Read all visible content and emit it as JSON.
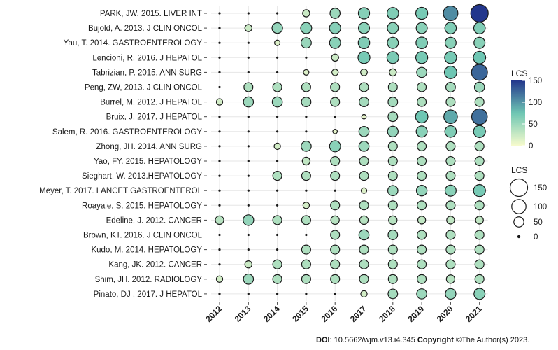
{
  "chart_data": {
    "type": "bubble-grid",
    "title": "",
    "xlabel": "",
    "ylabel": "",
    "x": [
      "2012",
      "2013",
      "2014",
      "2015",
      "2016",
      "2017",
      "2018",
      "2019",
      "2020",
      "2021"
    ],
    "rows": [
      {
        "label": "PARK, JW. 2015. LIVER INT",
        "values": [
          3,
          3,
          3,
          25,
          50,
          62,
          65,
          70,
          105,
          150
        ]
      },
      {
        "label": "Bujold, A. 2013. J CLIN ONCOL",
        "values": [
          3,
          25,
          55,
          60,
          62,
          60,
          60,
          60,
          65,
          65
        ]
      },
      {
        "label": "Yau, T. 2014. GASTROENTEROLOGY",
        "values": [
          3,
          3,
          15,
          52,
          60,
          65,
          60,
          65,
          60,
          60
        ]
      },
      {
        "label": "Lencioni, R. 2016. J HEPATOL",
        "values": [
          3,
          3,
          3,
          3,
          25,
          70,
          68,
          70,
          70,
          75
        ]
      },
      {
        "label": "Tabrizian, P. 2015. ANN SURG",
        "values": [
          3,
          3,
          3,
          15,
          20,
          22,
          25,
          50,
          75,
          125
        ]
      },
      {
        "label": "Peng, ZW, 2013. J CLIN ONCOL",
        "values": [
          3,
          40,
          40,
          40,
          40,
          40,
          40,
          40,
          45,
          50
        ]
      },
      {
        "label": "Burrel, M. 2012. J HEPATOL",
        "values": [
          20,
          50,
          50,
          45,
          40,
          45,
          45,
          40,
          40,
          40
        ]
      },
      {
        "label": "Bruix, J. 2017. J HEPATOL",
        "values": [
          3,
          3,
          3,
          3,
          3,
          10,
          45,
          75,
          90,
          120
        ]
      },
      {
        "label": "Salem, R. 2016.  GASTROENTEROLOGY",
        "values": [
          3,
          3,
          3,
          3,
          10,
          50,
          55,
          60,
          65,
          70
        ]
      },
      {
        "label": "Zhong, JH. 2014. ANN SURG",
        "values": [
          3,
          3,
          20,
          50,
          60,
          50,
          40,
          40,
          40,
          40
        ]
      },
      {
        "label": "Yao, FY. 2015. HEPATOLOGY",
        "values": [
          3,
          3,
          3,
          30,
          40,
          40,
          40,
          40,
          40,
          40
        ]
      },
      {
        "label": "Sieghart, W. 2013.HEPATOLOGY",
        "values": [
          3,
          3,
          40,
          40,
          40,
          40,
          40,
          40,
          40,
          40
        ]
      },
      {
        "label": "Meyer, T. 2017. LANCET GASTROENTEROL",
        "values": [
          3,
          3,
          3,
          3,
          3,
          15,
          50,
          55,
          60,
          70
        ]
      },
      {
        "label": "Roayaie, S. 2015. HEPATOLOGY",
        "values": [
          3,
          3,
          3,
          20,
          40,
          40,
          40,
          40,
          40,
          40
        ]
      },
      {
        "label": "Edeline, J. 2012. CANCER",
        "values": [
          35,
          55,
          40,
          40,
          35,
          35,
          35,
          30,
          30,
          30
        ]
      },
      {
        "label": "Brown, KT. 2016. J CLIN ONCOL",
        "values": [
          3,
          3,
          3,
          3,
          40,
          50,
          45,
          40,
          40,
          40
        ]
      },
      {
        "label": "Kudo, M. 2014. HEPATOLOGY",
        "values": [
          3,
          3,
          3,
          40,
          40,
          40,
          40,
          40,
          40,
          40
        ]
      },
      {
        "label": "Kang, JK. 2012.  CANCER",
        "values": [
          3,
          25,
          40,
          40,
          40,
          40,
          40,
          40,
          40,
          40
        ]
      },
      {
        "label": "Shim, JH. 2012. RADIOLOGY",
        "values": [
          20,
          50,
          40,
          40,
          40,
          40,
          40,
          40,
          35,
          40
        ]
      },
      {
        "label": "Pinato, DJ . 2017. J HEPATOL",
        "values": [
          3,
          3,
          3,
          3,
          3,
          20,
          45,
          50,
          55,
          60
        ]
      }
    ],
    "color_scale": {
      "min": 0,
      "max": 150,
      "low": "#f7fbcd",
      "mid": "#6ec6b3",
      "high": "#22368c"
    },
    "color_legend": {
      "title": "LCS",
      "ticks": [
        150,
        100,
        50,
        0
      ]
    },
    "size_legend": {
      "title": "LCS",
      "ticks": [
        150,
        100,
        50,
        0
      ]
    },
    "grid": true,
    "legend_position": "right"
  },
  "footer": {
    "doi_label": "DOI",
    "doi_text": ": 10.5662/wjm.v13.i4.345 ",
    "copyright_label": "Copyright",
    "copyright_text": " ©The Author(s) 2023."
  }
}
